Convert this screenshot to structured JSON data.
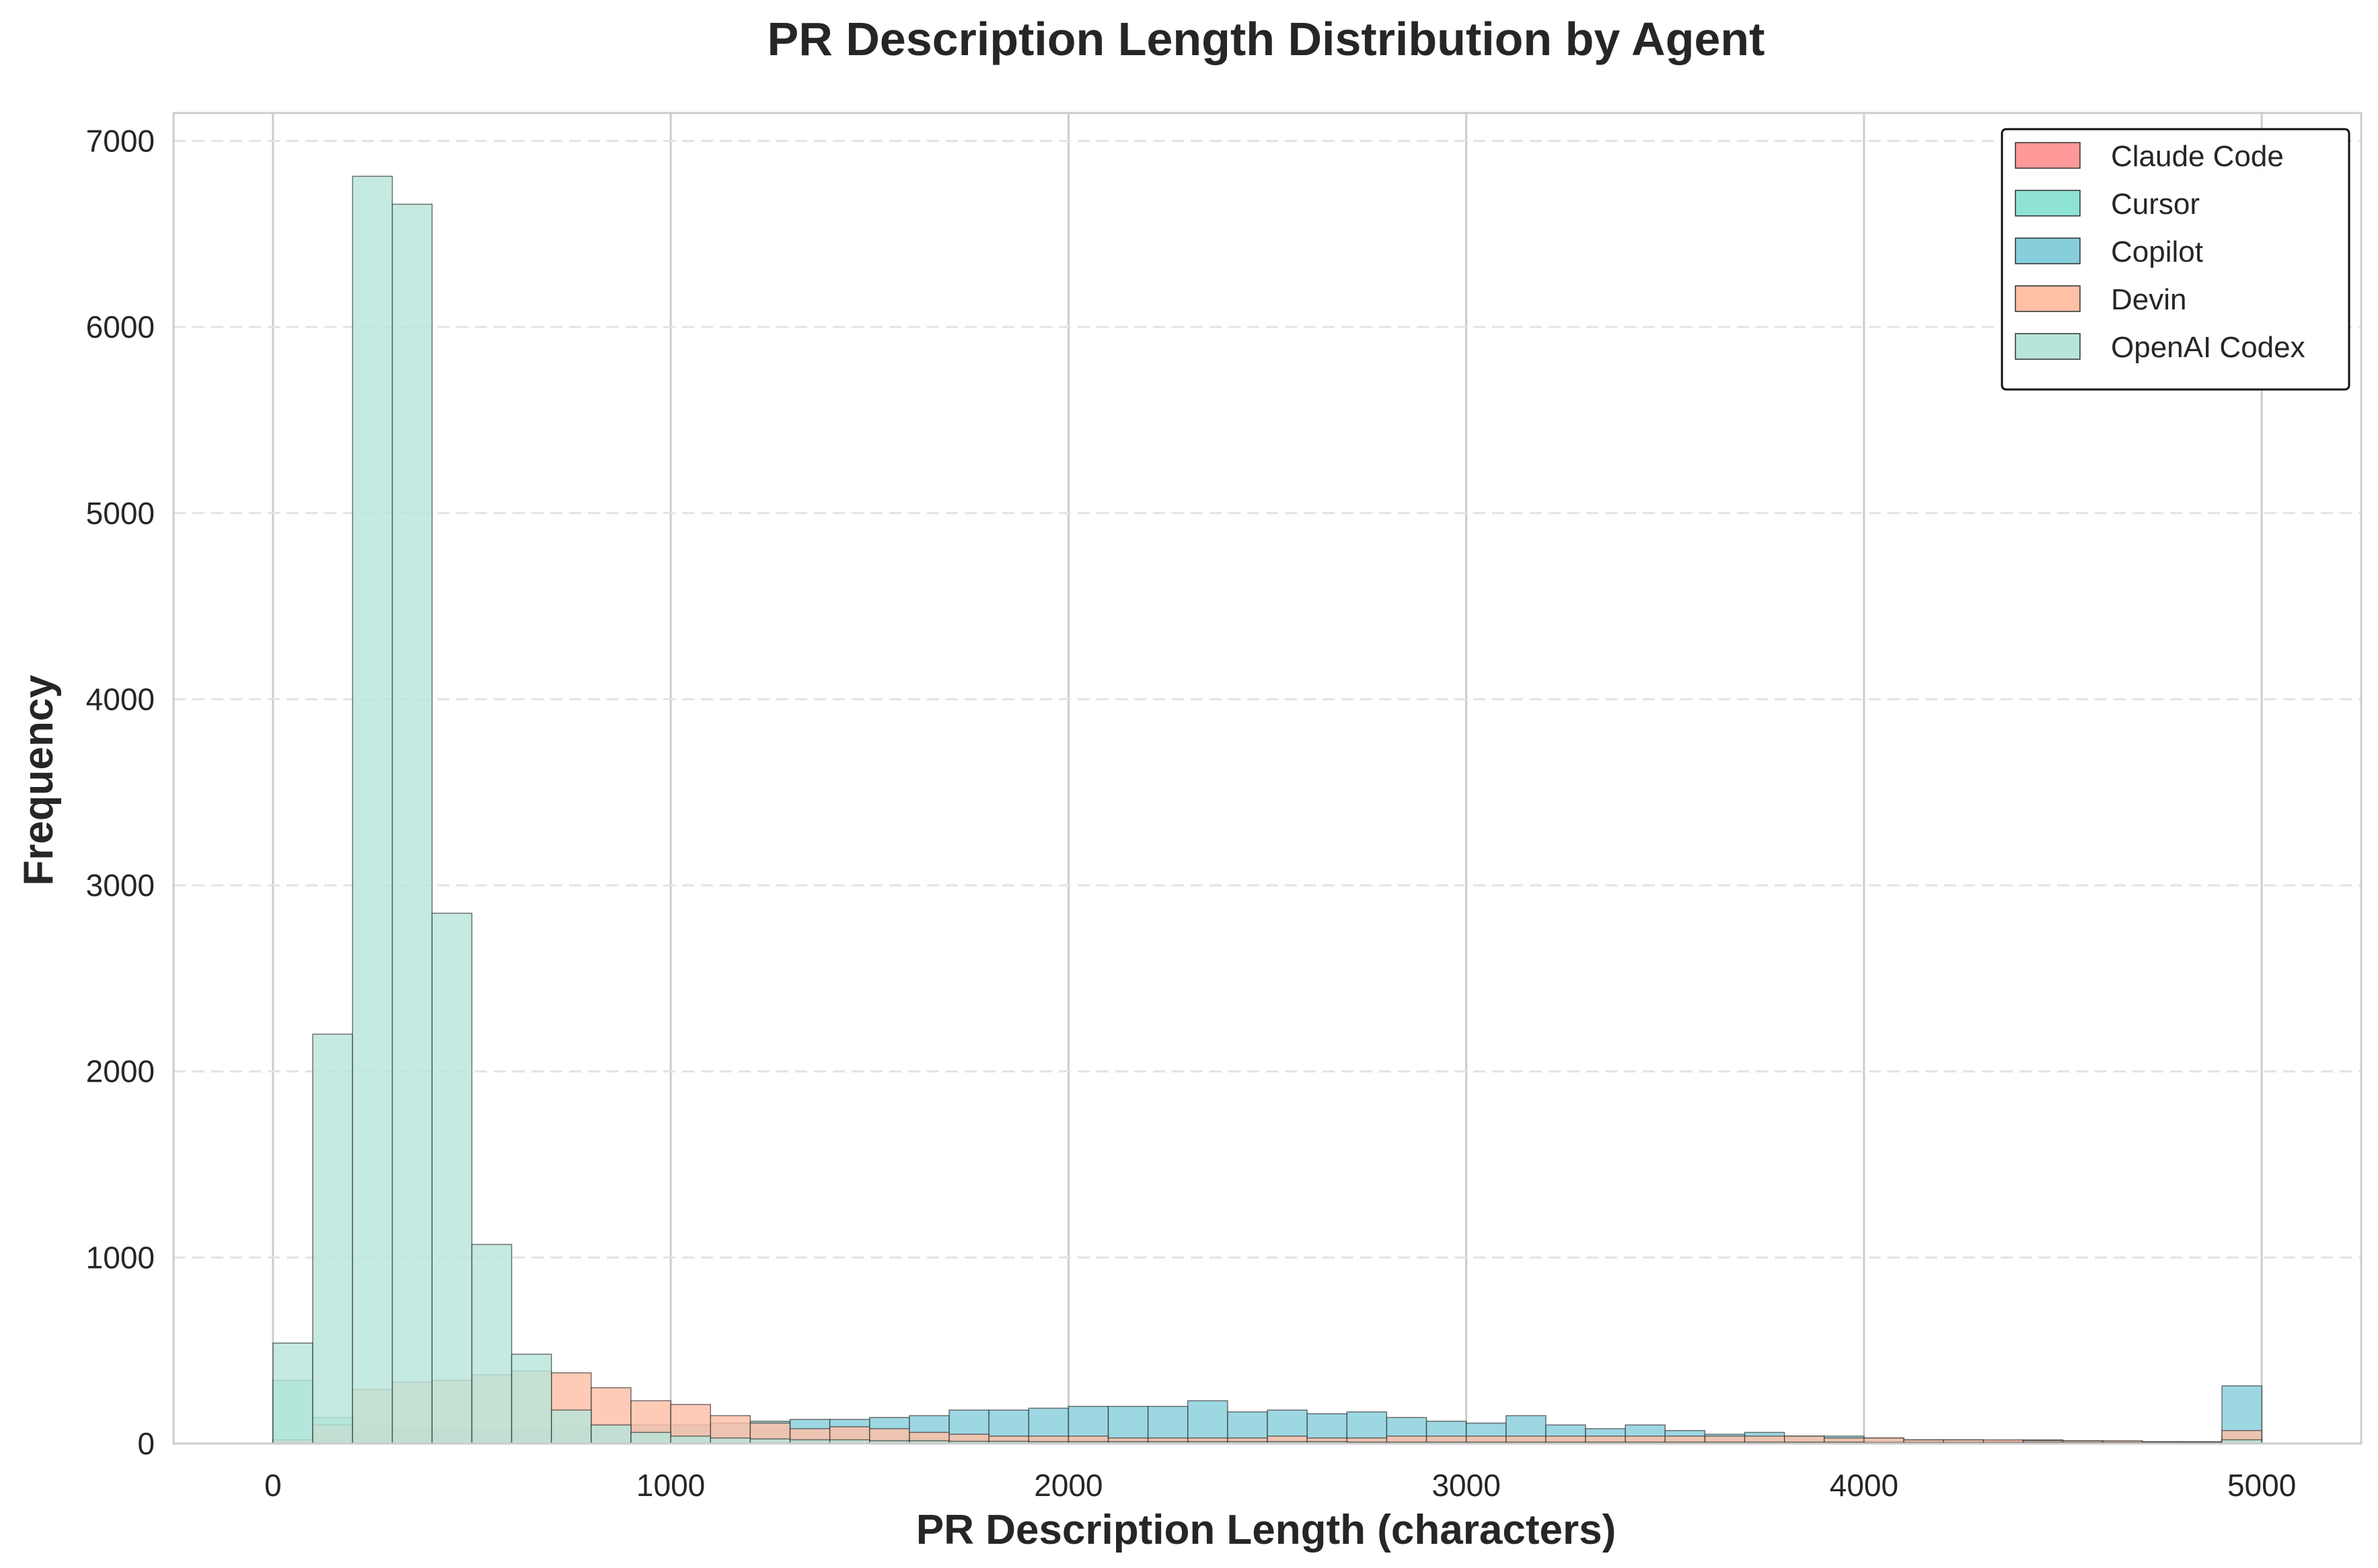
{
  "chart_data": {
    "type": "histogram",
    "title": "PR Description Length Distribution by Agent",
    "xlabel": "PR Description Length (characters)",
    "ylabel": "Frequency",
    "xlim": [
      -250,
      5250
    ],
    "ylim": [
      0,
      7150
    ],
    "x_ticks": [
      0,
      1000,
      2000,
      3000,
      4000,
      5000
    ],
    "y_ticks": [
      0,
      1000,
      2000,
      3000,
      4000,
      5000,
      6000,
      7000
    ],
    "grid": true,
    "legend_position": "top-right",
    "bins": {
      "start": 0,
      "width": 100,
      "count": 50
    },
    "series": [
      {
        "name": "Claude Code",
        "color": "#FF9999",
        "values": [
          20,
          30,
          60,
          80,
          70,
          60,
          50,
          45,
          40,
          35,
          30,
          28,
          25,
          24,
          22,
          22,
          20,
          20,
          18,
          18,
          18,
          16,
          16,
          15,
          15,
          15,
          15,
          14,
          14,
          14,
          14,
          13,
          13,
          12,
          12,
          12,
          11,
          11,
          10,
          10,
          10,
          9,
          9,
          9,
          8,
          8,
          8,
          8,
          8,
          40
        ]
      },
      {
        "name": "Cursor",
        "color": "#8EE3D4",
        "values": [
          340,
          140,
          90,
          80,
          70,
          60,
          50,
          45,
          40,
          35,
          30,
          28,
          25,
          24,
          22,
          22,
          20,
          20,
          18,
          18,
          18,
          16,
          16,
          15,
          15,
          15,
          15,
          14,
          14,
          14,
          14,
          13,
          13,
          12,
          12,
          12,
          11,
          11,
          10,
          10,
          10,
          9,
          9,
          9,
          8,
          8,
          8,
          8,
          8,
          30
        ]
      },
      {
        "name": "Copilot",
        "color": "#87CEDC",
        "values": [
          10,
          20,
          30,
          40,
          60,
          70,
          80,
          90,
          100,
          100,
          100,
          110,
          120,
          130,
          130,
          140,
          150,
          180,
          180,
          190,
          200,
          200,
          200,
          230,
          170,
          180,
          160,
          170,
          140,
          120,
          110,
          150,
          100,
          80,
          100,
          70,
          50,
          60,
          40,
          40,
          30,
          20,
          20,
          15,
          20,
          15,
          10,
          10,
          10,
          310
        ]
      },
      {
        "name": "Devin",
        "color": "#FFC0A6",
        "values": [
          20,
          100,
          290,
          330,
          340,
          370,
          390,
          380,
          300,
          230,
          210,
          150,
          110,
          80,
          90,
          80,
          60,
          50,
          40,
          40,
          40,
          30,
          30,
          30,
          30,
          40,
          30,
          30,
          40,
          40,
          40,
          40,
          40,
          40,
          40,
          40,
          40,
          40,
          40,
          30,
          30,
          20,
          20,
          20,
          15,
          15,
          15,
          10,
          5,
          70
        ]
      },
      {
        "name": "OpenAI Codex",
        "color": "#B8E5DB",
        "values": [
          540,
          2200,
          6810,
          6660,
          2850,
          1070,
          480,
          180,
          100,
          60,
          40,
          30,
          25,
          20,
          20,
          15,
          15,
          12,
          12,
          10,
          10,
          10,
          10,
          10,
          10,
          10,
          10,
          8,
          8,
          8,
          8,
          8,
          8,
          8,
          8,
          8,
          8,
          8,
          8,
          8,
          6,
          6,
          6,
          6,
          6,
          6,
          6,
          6,
          6,
          20
        ]
      }
    ]
  }
}
